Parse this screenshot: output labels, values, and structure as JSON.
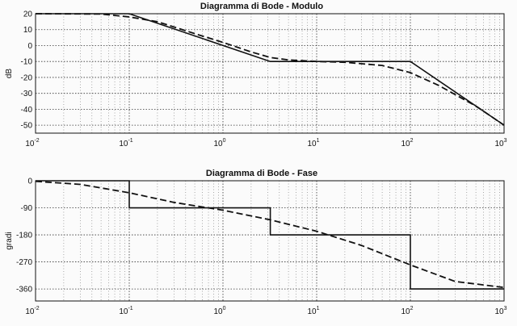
{
  "chart_data": [
    {
      "type": "line",
      "title": "Diagramma di Bode - Modulo",
      "xlabel": "",
      "ylabel": "dB",
      "xscale": "log",
      "xlim": [
        0.01,
        1000
      ],
      "ylim": [
        -55,
        20
      ],
      "xticks": [
        {
          "base": "10",
          "exp": "-2"
        },
        {
          "base": "10",
          "exp": "-1"
        },
        {
          "base": "10",
          "exp": "0"
        },
        {
          "base": "10",
          "exp": "1"
        },
        {
          "base": "10",
          "exp": "2"
        },
        {
          "base": "10",
          "exp": "3"
        }
      ],
      "yticks": [
        "20",
        "10",
        "0",
        "-10",
        "-20",
        "-30",
        "-40",
        "-50"
      ],
      "grid": true,
      "series": [
        {
          "style": "solid",
          "x": [
            0.01,
            0.1,
            3.2,
            100,
            1000
          ],
          "y": [
            20,
            20,
            -10,
            -10,
            -50
          ]
        },
        {
          "style": "dashed",
          "x": [
            0.01,
            0.05,
            0.1,
            0.2,
            0.5,
            1,
            2,
            3.2,
            5,
            10,
            20,
            50,
            100,
            200,
            500,
            1000
          ],
          "y": [
            20,
            19.8,
            18,
            15,
            7.5,
            2,
            -4,
            -7.5,
            -9,
            -10,
            -10.5,
            -12.5,
            -17,
            -25,
            -38,
            -50
          ]
        }
      ]
    },
    {
      "type": "line",
      "title": "Diagramma di Bode - Fase",
      "xlabel": "",
      "ylabel": "gradi",
      "xscale": "log",
      "xlim": [
        0.01,
        1000
      ],
      "ylim": [
        -400,
        0
      ],
      "xticks": [
        {
          "base": "10",
          "exp": "-2"
        },
        {
          "base": "10",
          "exp": "-1"
        },
        {
          "base": "10",
          "exp": "0"
        },
        {
          "base": "10",
          "exp": "1"
        },
        {
          "base": "10",
          "exp": "2"
        },
        {
          "base": "10",
          "exp": "3"
        }
      ],
      "yticks": [
        "0",
        "-90",
        "-180",
        "-270",
        "-360"
      ],
      "grid": true,
      "series": [
        {
          "style": "solid",
          "x": [
            0.01,
            0.1,
            0.1,
            3.2,
            3.2,
            100,
            100,
            1000
          ],
          "y": [
            0,
            0,
            -90,
            -90,
            -180,
            -180,
            -360,
            -360
          ]
        },
        {
          "style": "dashed",
          "x": [
            0.01,
            0.03,
            0.1,
            0.3,
            1,
            3.2,
            10,
            30,
            100,
            300,
            1000
          ],
          "y": [
            -2,
            -12,
            -40,
            -72,
            -98,
            -130,
            -168,
            -215,
            -280,
            -335,
            -355
          ]
        }
      ]
    }
  ]
}
